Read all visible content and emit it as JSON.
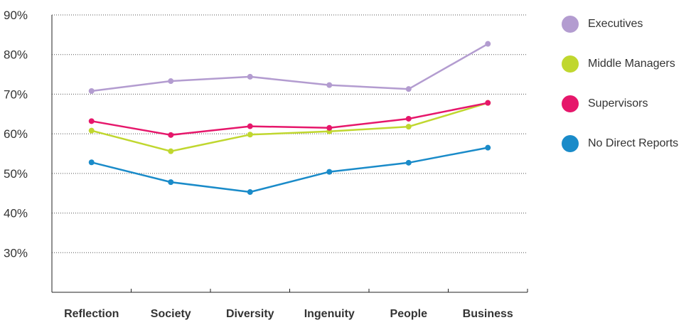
{
  "chart_data": {
    "type": "line",
    "categories": [
      "Reflection",
      "Society",
      "Diversity",
      "Ingenuity",
      "People",
      "Business"
    ],
    "y_tick_labels": [
      "30%",
      "40%",
      "50%",
      "60%",
      "70%",
      "80%",
      "90%"
    ],
    "y_ticks": [
      30,
      40,
      50,
      60,
      70,
      80,
      90
    ],
    "ylim": [
      20,
      90
    ],
    "grid": "horizontal dotted",
    "legend_position": "right",
    "series": [
      {
        "name": "Executives",
        "color": "#b39cd0",
        "values": [
          70.8,
          73.3,
          74.4,
          72.3,
          71.3,
          82.7
        ]
      },
      {
        "name": "Middle Managers",
        "color": "#c0d72f",
        "values": [
          60.8,
          55.6,
          59.8,
          60.6,
          61.8,
          67.8
        ]
      },
      {
        "name": "Supervisors",
        "color": "#e6176b",
        "values": [
          63.2,
          59.7,
          61.9,
          61.5,
          63.8,
          67.8
        ]
      },
      {
        "name": "No Direct Reports",
        "color": "#1a8bc9",
        "values": [
          52.8,
          47.8,
          45.3,
          50.4,
          52.7,
          56.5
        ]
      }
    ]
  }
}
